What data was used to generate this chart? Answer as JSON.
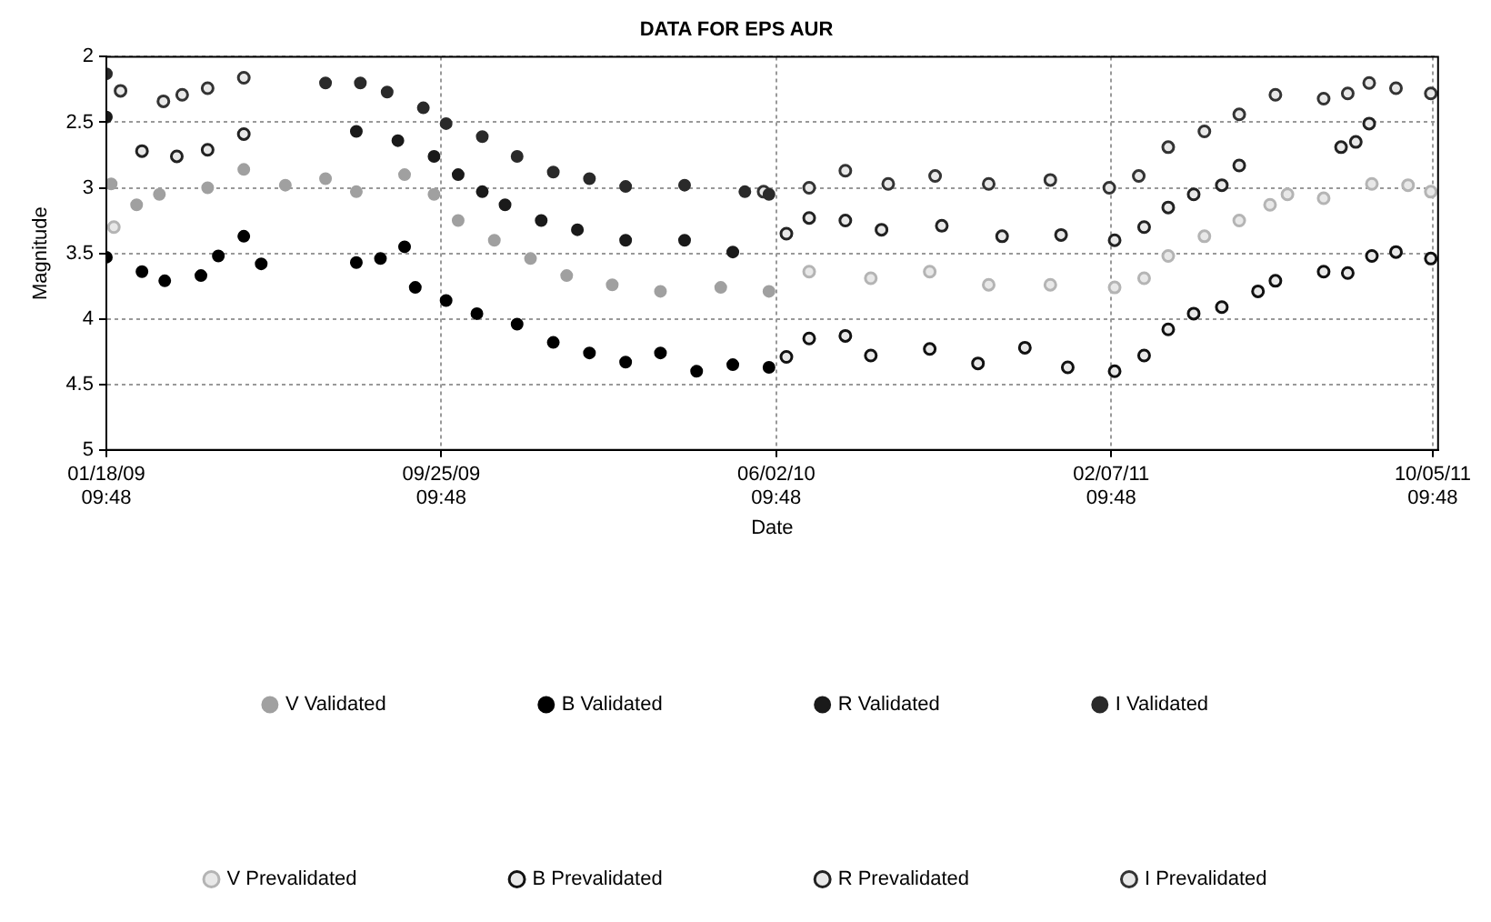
{
  "chart_data": {
    "type": "scatter",
    "title": "DATA FOR EPS AUR",
    "xlabel": "Date",
    "ylabel": "Magnitude",
    "xlim": [
      "2009-01-18T09:48",
      "2011-10-09T09:48"
    ],
    "xticks": [
      {
        "value": "2009-01-18T09:48",
        "label": "01/18/09\n09:48"
      },
      {
        "value": "2009-09-25T09:48",
        "label": "09/25/09\n09:48"
      },
      {
        "value": "2010-06-02T09:48",
        "label": "06/02/10\n09:48"
      },
      {
        "value": "2011-02-07T09:48",
        "label": "02/07/11\n09:48"
      },
      {
        "value": "2011-10-05T09:48",
        "label": "10/05/11\n09:48"
      }
    ],
    "ylim": [
      5,
      2
    ],
    "yticks": [
      2,
      2.5,
      3,
      3.5,
      4,
      4.5,
      5
    ],
    "grid": true,
    "legend": "bottom",
    "marker": "circle",
    "series": [
      {
        "name": "V Validated",
        "color": "#a0a0a0",
        "x": [
          "2009-01-22",
          "2009-02-10",
          "2009-02-27",
          "2009-04-04",
          "2009-05-01",
          "2009-06-01",
          "2009-07-01",
          "2009-07-24",
          "2009-08-29",
          "2009-09-20",
          "2009-10-08",
          "2009-11-04",
          "2009-12-01",
          "2009-12-28",
          "2010-01-31",
          "2010-03-08",
          "2010-04-22",
          "2010-05-28"
        ],
        "values": [
          2.97,
          3.13,
          3.05,
          3.0,
          2.86,
          2.98,
          2.93,
          3.03,
          2.9,
          3.05,
          3.25,
          3.4,
          3.54,
          3.67,
          3.74,
          3.79,
          3.76,
          3.79
        ]
      },
      {
        "name": "B Validated",
        "color": "#000000",
        "x": [
          "2009-01-18T09:48",
          "2009-02-14",
          "2009-03-03",
          "2009-03-30",
          "2009-04-12",
          "2009-05-01",
          "2009-05-14",
          "2009-07-24",
          "2009-08-11",
          "2009-08-29",
          "2009-09-06",
          "2009-09-29",
          "2009-10-22",
          "2009-11-21",
          "2009-12-18",
          "2010-01-14",
          "2010-02-10",
          "2010-03-08",
          "2010-04-04",
          "2010-05-01",
          "2010-05-28"
        ],
        "values": [
          3.53,
          3.64,
          3.71,
          3.67,
          3.52,
          3.37,
          3.58,
          3.57,
          3.54,
          3.45,
          3.76,
          3.86,
          3.96,
          4.04,
          4.18,
          4.26,
          4.33,
          4.26,
          4.4,
          4.35,
          4.37
        ]
      },
      {
        "name": "R Validated",
        "color": "#1a1a1a",
        "x": [
          "2009-01-18T09:48",
          "2009-07-24",
          "2009-08-24",
          "2009-09-20",
          "2009-10-08",
          "2009-10-26",
          "2009-11-12",
          "2009-12-09",
          "2010-01-05",
          "2010-02-10",
          "2010-03-26",
          "2010-05-01"
        ],
        "values": [
          2.46,
          2.57,
          2.64,
          2.76,
          2.9,
          3.03,
          3.13,
          3.25,
          3.32,
          3.4,
          3.4,
          3.49
        ]
      },
      {
        "name": "I Validated",
        "color": "#2a2a2a",
        "x": [
          "2009-01-18T09:48",
          "2009-07-01",
          "2009-07-27",
          "2009-08-16",
          "2009-09-12",
          "2009-09-29",
          "2009-10-26",
          "2009-11-21",
          "2009-12-18",
          "2010-01-14",
          "2010-02-10",
          "2010-03-26",
          "2010-05-10",
          "2010-05-28"
        ],
        "values": [
          2.13,
          2.2,
          2.2,
          2.27,
          2.39,
          2.51,
          2.61,
          2.76,
          2.88,
          2.93,
          2.99,
          2.98,
          3.03,
          3.05
        ]
      },
      {
        "name": "V Prevalidated",
        "color": "#b4b4b4",
        "x": [
          "2009-01-24",
          "2010-06-27",
          "2010-08-12",
          "2010-09-25",
          "2010-11-08",
          "2010-12-24",
          "2011-02-10",
          "2011-03-04",
          "2011-03-22",
          "2011-04-18",
          "2011-05-14",
          "2011-06-06",
          "2011-06-19",
          "2011-07-16",
          "2011-08-21",
          "2011-09-17",
          "2011-10-04"
        ],
        "values": [
          3.3,
          3.64,
          3.69,
          3.64,
          3.74,
          3.74,
          3.76,
          3.69,
          3.52,
          3.37,
          3.25,
          3.13,
          3.05,
          3.08,
          2.97,
          2.98,
          3.03
        ]
      },
      {
        "name": "B Prevalidated",
        "color": "#111111",
        "x": [
          "2010-06-10",
          "2010-06-27",
          "2010-07-24",
          "2010-08-12",
          "2010-09-25",
          "2010-10-31",
          "2010-12-05",
          "2011-01-06",
          "2011-02-10",
          "2011-03-04",
          "2011-03-22",
          "2011-04-10",
          "2011-05-01",
          "2011-05-28",
          "2011-06-10",
          "2011-07-16",
          "2011-08-03",
          "2011-08-21",
          "2011-09-08",
          "2011-10-04"
        ],
        "values": [
          4.29,
          4.15,
          4.13,
          4.28,
          4.23,
          4.34,
          4.22,
          4.37,
          4.4,
          4.28,
          4.08,
          3.96,
          3.91,
          3.79,
          3.71,
          3.64,
          3.65,
          3.52,
          3.49,
          3.54
        ]
      },
      {
        "name": "R Prevalidated",
        "color": "#222222",
        "x": [
          "2009-02-14",
          "2009-03-12",
          "2009-04-04",
          "2009-05-01",
          "2010-06-10",
          "2010-06-27",
          "2010-07-24",
          "2010-08-20",
          "2010-10-04",
          "2010-11-18",
          "2011-01-01",
          "2011-02-10",
          "2011-03-04",
          "2011-03-22",
          "2011-04-10",
          "2011-05-01",
          "2011-05-14",
          "2011-07-29",
          "2011-08-09",
          "2011-08-19"
        ],
        "values": [
          2.72,
          2.76,
          2.71,
          2.59,
          3.35,
          3.23,
          3.25,
          3.32,
          3.29,
          3.37,
          3.36,
          3.4,
          3.3,
          3.15,
          3.05,
          2.98,
          2.83,
          2.69,
          2.65,
          2.51
        ]
      },
      {
        "name": "I Prevalidated",
        "color": "#333333",
        "x": [
          "2009-01-29",
          "2009-03-02",
          "2009-03-16",
          "2009-04-04",
          "2009-05-01",
          "2010-05-24",
          "2010-06-27",
          "2010-07-24",
          "2010-08-25",
          "2010-09-29",
          "2010-11-08",
          "2010-12-24",
          "2011-02-06",
          "2011-02-28",
          "2011-03-22",
          "2011-04-18",
          "2011-05-14",
          "2011-06-10",
          "2011-07-16",
          "2011-08-03",
          "2011-08-19",
          "2011-09-08",
          "2011-10-04"
        ],
        "values": [
          2.26,
          2.34,
          2.29,
          2.24,
          2.16,
          3.03,
          3.0,
          2.87,
          2.97,
          2.91,
          2.97,
          2.94,
          3.0,
          2.91,
          2.69,
          2.57,
          2.44,
          2.29,
          2.32,
          2.28,
          2.2,
          2.24,
          2.28
        ]
      }
    ]
  }
}
